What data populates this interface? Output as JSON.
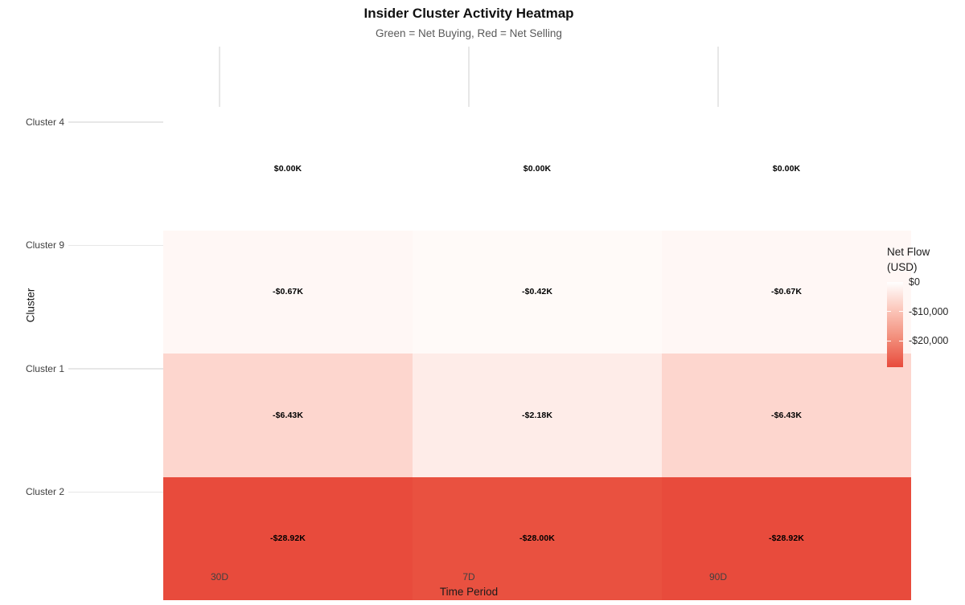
{
  "title": "Insider Cluster Activity Heatmap",
  "subtitle": "Green = Net Buying, Red = Net Selling",
  "chart_data": {
    "type": "heatmap",
    "title": "Insider Cluster Activity Heatmap",
    "subtitle": "Green = Net Buying, Red = Net Selling",
    "xlabel": "Time Period",
    "ylabel": "Cluster",
    "x_categories": [
      "30D",
      "7D",
      "90D"
    ],
    "y_categories": [
      "Cluster 4",
      "Cluster 9",
      "Cluster 1",
      "Cluster 2"
    ],
    "values_usd": [
      [
        0,
        0,
        0
      ],
      [
        -670,
        -420,
        -670
      ],
      [
        -6430,
        -2180,
        -6430
      ],
      [
        -28920,
        -28000,
        -28920
      ]
    ],
    "cell_labels": [
      [
        "$0.00K",
        "$0.00K",
        "$0.00K"
      ],
      [
        "-$0.67K",
        "-$0.42K",
        "-$0.67K"
      ],
      [
        "-$6.43K",
        "-$2.18K",
        "-$6.43K"
      ],
      [
        "-$28.92K",
        "-$28.00K",
        "-$28.92K"
      ]
    ],
    "cell_colors": [
      [
        "#FFFFFF",
        "#FFFFFF",
        "#FFFFFF"
      ],
      [
        "#FFF7F5",
        "#FFFAF8",
        "#FFF7F5"
      ],
      [
        "#FDD6CE",
        "#FEECE8",
        "#FDD6CE"
      ],
      [
        "#E84B3C",
        "#E95140",
        "#E84B3C"
      ]
    ],
    "grid": true,
    "gridline_color": "#E7E7E7",
    "legend": {
      "title": "Net Flow\n(USD)",
      "position": "right",
      "tick_labels": [
        "$0",
        "-$10,000",
        "-$20,000"
      ],
      "tick_values": [
        0,
        -10000,
        -20000
      ],
      "range": [
        0,
        -28920
      ],
      "gradient_stops": [
        "#FFFFFF",
        "#FBC5B9",
        "#F28C79",
        "#E84B3C"
      ]
    }
  }
}
